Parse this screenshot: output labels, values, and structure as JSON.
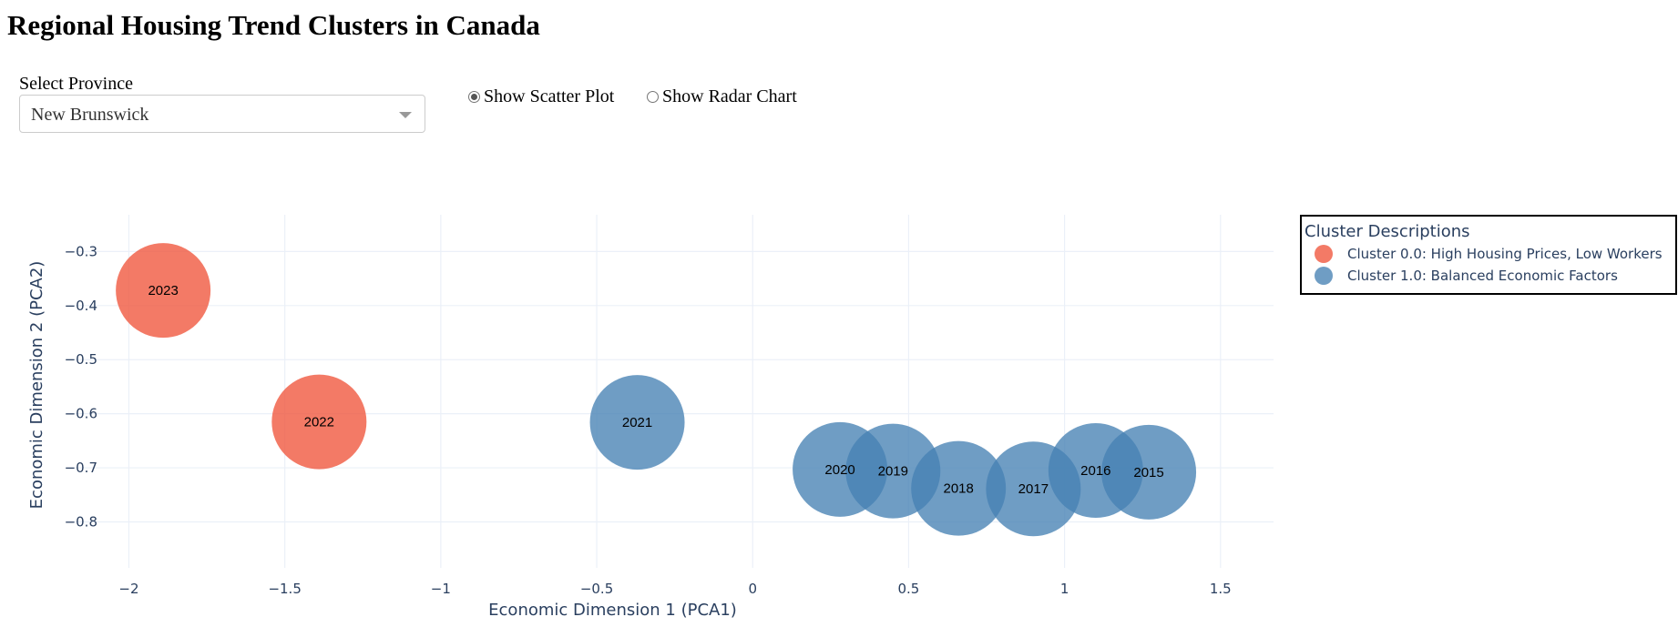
{
  "page": {
    "title": "Regional Housing Trend Clusters in Canada"
  },
  "controls": {
    "province_label": "Select Province",
    "province_value": "New Brunswick",
    "radio_options": [
      {
        "label": "Show Scatter Plot",
        "checked": true
      },
      {
        "label": "Show Radar Chart",
        "checked": false
      }
    ]
  },
  "chart_data": {
    "type": "scatter",
    "title": "",
    "xlabel": "Economic Dimension 1 (PCA1)",
    "ylabel": "Economic Dimension 2 (PCA2)",
    "xlim": [
      -2.2,
      1.67
    ],
    "ylim": [
      -0.885,
      -0.232
    ],
    "xticks": [
      -2,
      -1.5,
      -1,
      -0.5,
      0,
      0.5,
      1,
      1.5
    ],
    "xtick_labels": [
      "−2",
      "−1.5",
      "−1",
      "−0.5",
      "0",
      "0.5",
      "1",
      "1.5"
    ],
    "yticks": [
      -0.3,
      -0.4,
      -0.5,
      -0.6,
      -0.7,
      -0.8
    ],
    "ytick_labels": [
      "−0.3",
      "−0.4",
      "−0.5",
      "−0.6",
      "−0.7",
      "−0.8"
    ],
    "grid": true,
    "legend": {
      "title": "Cluster Descriptions",
      "placement": "right"
    },
    "series": [
      {
        "name": "Cluster 0.0: High Housing Prices, Low Workers",
        "color": "#EF553B",
        "points": [
          {
            "label": "2023",
            "x": -1.89,
            "y": -0.372
          },
          {
            "label": "2022",
            "x": -1.39,
            "y": -0.615
          }
        ]
      },
      {
        "name": "Cluster 1.0: Balanced Economic Factors",
        "color": "#4682B4",
        "points": [
          {
            "label": "2021",
            "x": -0.37,
            "y": -0.616
          },
          {
            "label": "2020",
            "x": 0.28,
            "y": -0.703
          },
          {
            "label": "2019",
            "x": 0.45,
            "y": -0.706
          },
          {
            "label": "2018",
            "x": 0.66,
            "y": -0.738
          },
          {
            "label": "2017",
            "x": 0.9,
            "y": -0.739
          },
          {
            "label": "2016",
            "x": 1.1,
            "y": -0.705
          },
          {
            "label": "2015",
            "x": 1.27,
            "y": -0.708
          }
        ]
      }
    ]
  }
}
